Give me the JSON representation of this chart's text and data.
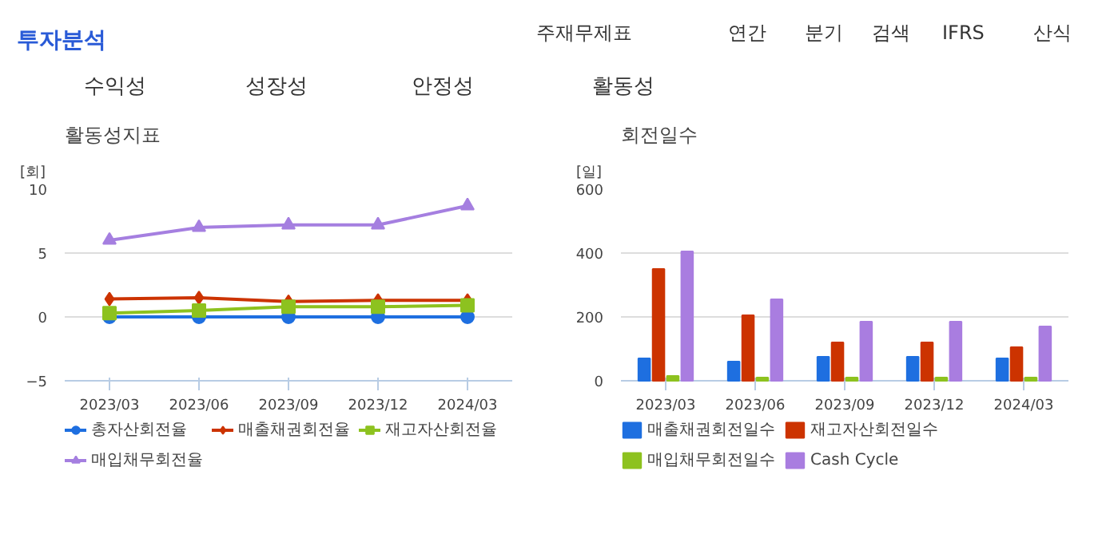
{
  "chart_data": [
    {
      "type": "other",
      "title": "투자분석",
      "annotations": [
        "주재무제표",
        "연간",
        "분기",
        "검색",
        "IFRS",
        "산식",
        "수익성",
        "성장성",
        "안정성",
        "활동성"
      ]
    },
    {
      "type": "line",
      "title": "활동성지표",
      "ylabel": "[회]",
      "categories": [
        "2023/03",
        "2023/06",
        "2023/09",
        "2023/12",
        "2024/03"
      ],
      "ylim": [
        -5,
        10
      ],
      "yticks": [
        -5,
        0,
        5,
        10
      ],
      "grid": "y",
      "legend": "bottom",
      "line_style": "solid",
      "series": [
        {
          "name": "총자산회전율",
          "color": "#1e6fe0",
          "marker": "circle",
          "values": [
            0,
            0,
            0,
            0,
            0
          ]
        },
        {
          "name": "매출채권회전율",
          "color": "#cc3300",
          "marker": "diamond",
          "values": [
            1.4,
            1.5,
            1.2,
            1.3,
            1.3
          ]
        },
        {
          "name": "재고자산회전율",
          "color": "#8dc21f",
          "marker": "square",
          "values": [
            0.3,
            0.5,
            0.8,
            0.8,
            0.9
          ]
        },
        {
          "name": "매입채무회전율",
          "color": "#a57fe0",
          "marker": "triangle",
          "values": [
            6.0,
            7.0,
            7.2,
            7.2,
            8.7
          ]
        }
      ]
    },
    {
      "type": "bar",
      "title": "회전일수",
      "ylabel": "[일]",
      "categories": [
        "2023/03",
        "2023/06",
        "2023/09",
        "2023/12",
        "2024/03"
      ],
      "ylim": [
        0,
        600
      ],
      "yticks": [
        0,
        200,
        400,
        600
      ],
      "grid": "y",
      "legend": "bottom",
      "series": [
        {
          "name": "매출채권회전일수",
          "color": "#1e6fe0",
          "values": [
            70,
            60,
            75,
            75,
            70
          ]
        },
        {
          "name": "재고자산회전일수",
          "color": "#cc3300",
          "values": [
            350,
            205,
            120,
            120,
            105
          ]
        },
        {
          "name": "매입채무회전일수",
          "color": "#8dc21f",
          "values": [
            15,
            10,
            10,
            10,
            10
          ]
        },
        {
          "name": "Cash Cycle",
          "color": "#a97de0",
          "values": [
            405,
            255,
            185,
            185,
            170
          ]
        }
      ]
    }
  ]
}
